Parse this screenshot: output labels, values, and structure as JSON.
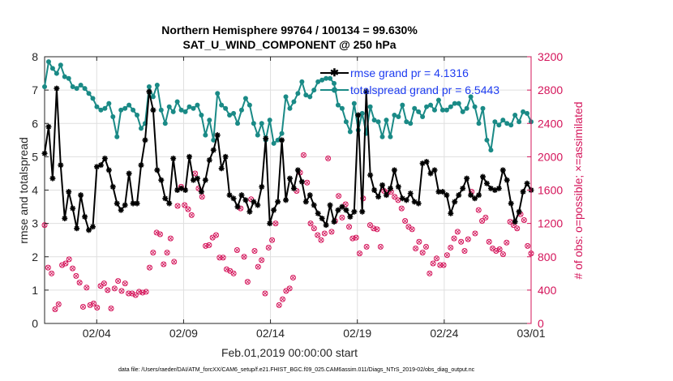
{
  "chart_data": {
    "type": "line",
    "title_line1": "Northern Hemisphere 99764 / 100134 = 99.630%",
    "title_line2": "SAT_U_WIND_COMPONENT @ 250 hPa",
    "xlabel": "Feb.01,2019 00:00:00 start",
    "ylabel_left": "rmse and totalspread",
    "ylabel_right": "# of obs: o=possible; ×=assimilated",
    "footer": "data file: /Users/raeder/DAI/ATM_forcXX/CAM6_setup/f.e21.FHIST_BGC.f09_025.CAM6assim.011/Diags_NTrS_2019-02/obs_diag_output.nc",
    "x_range_days": [
      0,
      28
    ],
    "ylim_left": [
      0,
      8
    ],
    "ylim_right": [
      0,
      3200
    ],
    "xticks": [
      {
        "day": 3,
        "label": "02/04"
      },
      {
        "day": 8,
        "label": "02/09"
      },
      {
        "day": 13,
        "label": "02/14"
      },
      {
        "day": 18,
        "label": "02/19"
      },
      {
        "day": 23,
        "label": "02/24"
      },
      {
        "day": 28,
        "label": "03/01"
      }
    ],
    "yticks_left": [
      "0",
      "1",
      "2",
      "3",
      "4",
      "5",
      "6",
      "7",
      "8"
    ],
    "yticks_right": [
      "0",
      "400",
      "800",
      "1200",
      "1600",
      "2000",
      "2400",
      "2800",
      "3200"
    ],
    "grid": true,
    "legend_position": "top-right",
    "series": [
      {
        "name": "rmse grand pr = 4.1316",
        "color": "#000000",
        "axis": "left",
        "values": [
          5.1,
          5.9,
          4.35,
          7.05,
          4.75,
          3.15,
          3.95,
          3.45,
          2.85,
          3.85,
          3.2,
          2.8,
          2.9,
          4.7,
          4.75,
          4.95,
          4.6,
          4.1,
          3.6,
          3.4,
          3.55,
          4.5,
          3.6,
          3.6,
          4.75,
          5.5,
          6.95,
          6.4,
          4.6,
          4.3,
          3.75,
          3.6,
          4.95,
          4.0,
          4.05,
          4.0,
          5.0,
          4.3,
          4.35,
          3.95,
          4.3,
          4.9,
          5.2,
          5.65,
          4.65,
          5.0,
          3.85,
          3.75,
          3.5,
          3.85,
          3.7,
          3.35,
          3.65,
          3.55,
          4.1,
          5.55,
          3.0,
          3.4,
          3.65,
          5.5,
          3.7,
          4.35,
          4.05,
          4.6,
          4.25,
          3.65,
          3.85,
          3.55,
          3.3,
          3.15,
          2.95,
          3.55,
          3.05,
          3.4,
          3.5,
          3.4,
          3.2,
          3.35,
          6.25,
          3.35,
          6.95,
          4.45,
          4.0,
          3.8,
          4.15,
          3.85,
          4.05,
          4.6,
          4.1,
          3.75,
          3.7,
          3.9,
          3.65,
          3.6,
          4.8,
          4.85,
          4.5,
          4.6,
          3.95,
          3.95,
          3.85,
          3.3,
          3.65,
          3.85,
          4.05,
          4.35,
          3.85,
          3.75,
          3.85,
          4.4,
          4.2,
          4.05,
          4.0,
          4.05,
          4.6,
          4.3,
          3.6,
          3.05,
          3.35,
          3.95,
          4.2,
          4.0
        ]
      },
      {
        "name": "totalspread grand pr = 6.5443",
        "color": "#1a8a86",
        "axis": "left",
        "values": [
          7.1,
          7.85,
          7.65,
          7.5,
          7.75,
          7.4,
          7.35,
          7.1,
          7.05,
          7.15,
          7.05,
          6.9,
          6.75,
          6.5,
          6.4,
          6.45,
          6.6,
          6.2,
          5.6,
          6.4,
          6.45,
          6.55,
          6.4,
          6.25,
          5.85,
          6.0,
          7.1,
          6.8,
          7.15,
          6.4,
          6.0,
          6.5,
          6.35,
          6.65,
          6.4,
          6.35,
          6.5,
          6.45,
          6.55,
          6.25,
          5.65,
          6.1,
          5.5,
          6.9,
          6.55,
          6.45,
          6.25,
          6.3,
          6.0,
          6.4,
          6.75,
          6.55,
          6.0,
          5.65,
          6.0,
          5.5,
          6.1,
          5.4,
          5.5,
          5.7,
          6.8,
          6.45,
          6.65,
          6.9,
          7.25,
          6.85,
          6.8,
          7.0,
          7.25,
          7.3,
          7.35,
          7.35,
          7.2,
          6.55,
          6.45,
          6.05,
          5.75,
          6.6,
          5.8,
          6.3,
          5.7,
          6.5,
          6.1,
          6.05,
          5.6,
          6.1,
          5.6,
          6.25,
          6.2,
          6.55,
          6.05,
          6.0,
          6.45,
          6.35,
          6.2,
          6.5,
          6.55,
          6.4,
          6.7,
          6.4,
          6.4,
          6.5,
          6.6,
          6.6,
          6.35,
          6.45,
          6.8,
          6.5,
          6.0,
          6.45,
          5.5,
          5.2,
          6.05,
          5.95,
          6.1,
          6.0,
          5.95,
          6.25,
          6.05,
          6.35,
          6.3,
          6.05
        ]
      },
      {
        "name": "obs possible / assimilated",
        "color": "#d4145a",
        "axis": "right",
        "values": [
          1180,
          670,
          600,
          170,
          230,
          700,
          720,
          770,
          660,
          570,
          490,
          200,
          430,
          220,
          240,
          190,
          450,
          480,
          400,
          180,
          420,
          510,
          390,
          480,
          360,
          360,
          340,
          380,
          370,
          380,
          670,
          850,
          1090,
          1070,
          710,
          850,
          1020,
          740,
          1410,
          1640,
          1420,
          1370,
          1300,
          1800,
          1620,
          1520,
          930,
          940,
          1030,
          1060,
          790,
          790,
          650,
          630,
          600,
          880,
          1380,
          800,
          500,
          1490,
          870,
          680,
          760,
          360,
          910,
          1000,
          1200,
          220,
          290,
          390,
          420,
          550,
          1590,
          1810,
          2020,
          1690,
          1200,
          1140,
          1060,
          1000,
          1080,
          1980,
          1100,
          1230,
          1530,
          1270,
          1430,
          1160,
          1020,
          1030,
          840,
          1500,
          920,
          1180,
          1140,
          1130,
          920,
          1590,
          1570,
          1580,
          1520,
          1480,
          1380,
          1230,
          1160,
          1130,
          900,
          980,
          850,
          920,
          600,
          720,
          780,
          700,
          700,
          820,
          910,
          1020,
          1100,
          980,
          870,
          1010,
          1580,
          1080,
          1360,
          1230,
          1270,
          980,
          900,
          870,
          890,
          830,
          970,
          1220,
          1180,
          1140,
          1310,
          1240,
          930,
          840
        ]
      }
    ]
  }
}
